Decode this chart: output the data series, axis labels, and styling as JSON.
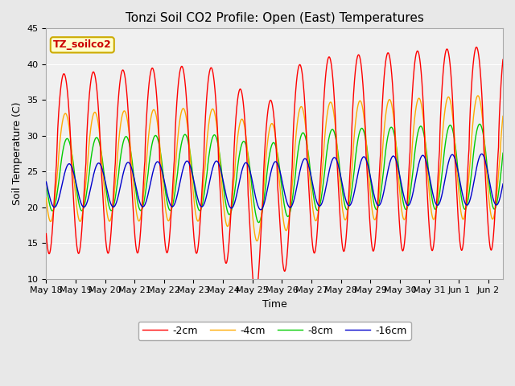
{
  "title": "Tonzi Soil CO2 Profile: Open (East) Temperatures",
  "xlabel": "Time",
  "ylabel": "Soil Temperature (C)",
  "ylim": [
    10,
    45
  ],
  "label_text": "TZ_soilco2",
  "label_color": "#cc0000",
  "label_bg": "#ffffcc",
  "label_border": "#ccaa00",
  "series_labels": [
    "-2cm",
    "-4cm",
    "-8cm",
    "-16cm"
  ],
  "series_colors": [
    "#ff0000",
    "#ffaa00",
    "#00cc00",
    "#0000cc"
  ],
  "xtick_labels": [
    "May 18",
    "May 19",
    "May 20",
    "May 21",
    "May 22",
    "May 23",
    "May 24",
    "May 25",
    "May 26",
    "May 27",
    "May 28",
    "May 29",
    "May 30",
    "May 31",
    "Jun 1",
    "Jun 2"
  ],
  "bg_color": "#e8e8e8",
  "plot_bg": "#f0f0f0",
  "grid_color": "#ffffff",
  "title_fontsize": 11,
  "axis_fontsize": 9,
  "tick_fontsize": 8,
  "legend_fontsize": 9
}
